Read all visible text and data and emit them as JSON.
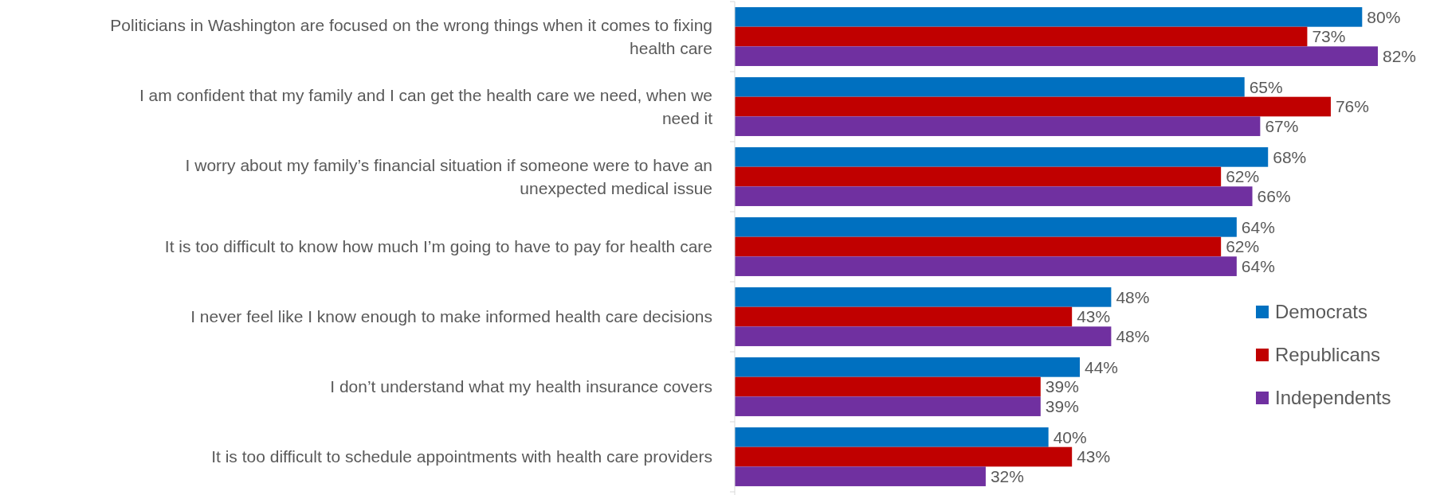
{
  "chart_data": {
    "type": "bar",
    "orientation": "horizontal",
    "categories": [
      "Politicians in Washington are focused on the wrong things when it comes to fixing health care",
      "I am confident that my family and I can get the health care we need, when we need it",
      "I worry about my family’s financial situation if someone were to have an unexpected medical issue",
      "It is too difficult to know how much I’m going to have to pay for health care",
      "I never feel like I know enough to make informed health care decisions",
      "I don’t understand what my health insurance covers",
      "It is too difficult to schedule appointments with health care providers"
    ],
    "series": [
      {
        "name": "Democrats",
        "color": "#0070c0",
        "values": [
          80,
          65,
          68,
          64,
          48,
          44,
          40
        ],
        "value_labels": [
          "80%",
          "65%",
          "68%",
          "64%",
          "48%",
          "44%",
          "40%"
        ]
      },
      {
        "name": "Republicans",
        "color": "#c00000",
        "values": [
          73,
          76,
          62,
          62,
          43,
          39,
          43
        ],
        "value_labels": [
          "73%",
          "76%",
          "62%",
          "62%",
          "43%",
          "39%",
          "43%"
        ]
      },
      {
        "name": "Independents",
        "color": "#7030a0",
        "values": [
          82,
          67,
          66,
          64,
          48,
          39,
          32
        ],
        "value_labels": [
          "82%",
          "67%",
          "66%",
          "64%",
          "48%",
          "39%",
          "32%"
        ]
      }
    ],
    "legend": "right"
  }
}
